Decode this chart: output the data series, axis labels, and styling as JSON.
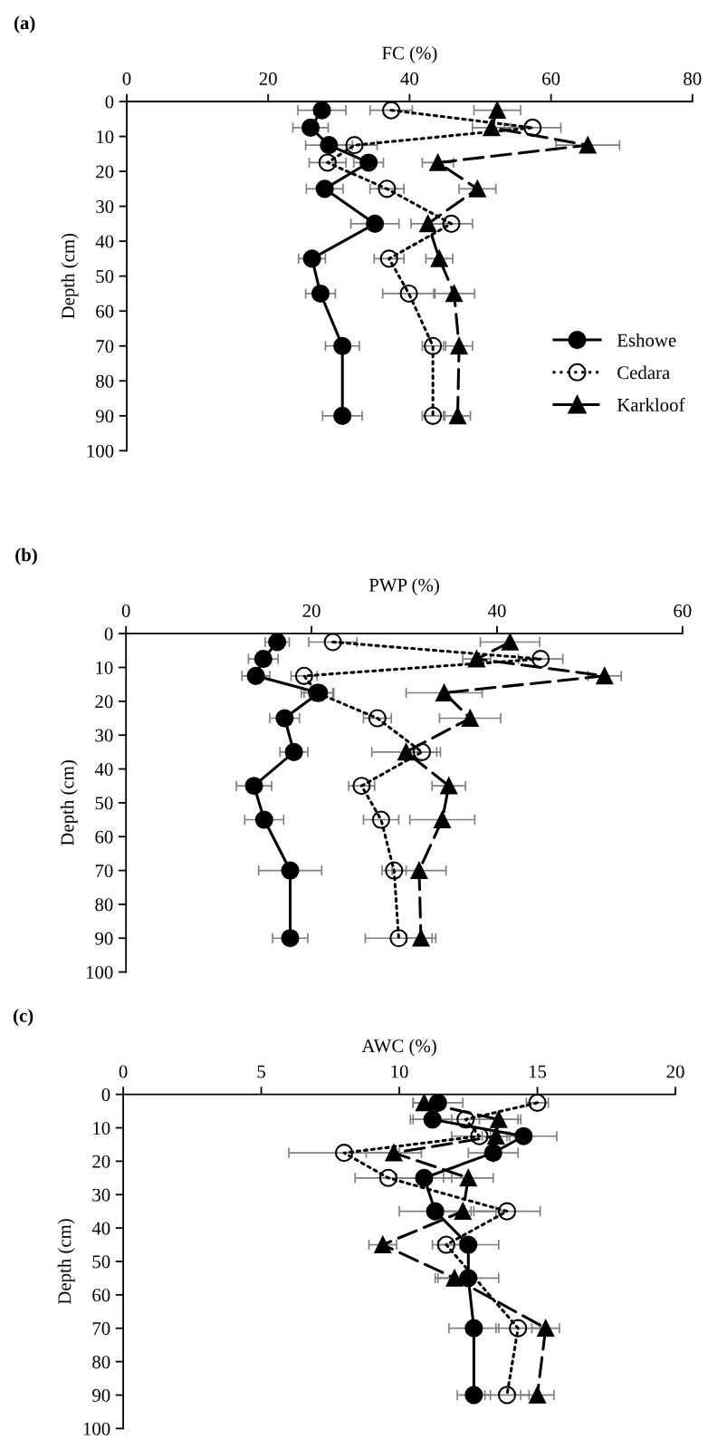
{
  "chart_data": [
    {
      "type": "line",
      "title": "(a)",
      "xlabel": "FC (%)",
      "ylabel": "Depth (cm)",
      "xlim": [
        0,
        80
      ],
      "xticks": [
        0,
        20,
        40,
        60,
        80
      ],
      "ylim": [
        100,
        0
      ],
      "yticks": [
        0,
        10,
        20,
        30,
        40,
        50,
        60,
        70,
        80,
        90,
        100
      ],
      "grid": false,
      "legend": "bottom right",
      "series": [
        {
          "name": "Eshowe",
          "color": "#000000",
          "marker": "circle",
          "line_style": "solid",
          "x": [
            27.6,
            26.0,
            28.6,
            34.2,
            28.0,
            35.1,
            26.2,
            27.4,
            30.5,
            30.5
          ],
          "values": [
            2.5,
            7.5,
            12.5,
            17.5,
            25,
            35,
            45,
            55,
            70,
            90
          ],
          "xerrors": [
            3.4,
            2.5,
            3.3,
            2.1,
            2.6,
            3.4,
            1.9,
            2.1,
            2.4,
            2.8
          ]
        },
        {
          "name": "Cedara",
          "color": "#000000",
          "marker": "circle",
          "line_style": "dotted",
          "x": [
            37.4,
            57.4,
            32.2,
            28.4,
            36.8,
            45.9,
            37.1,
            39.9,
            43.3,
            43.3
          ],
          "values": [
            2.5,
            7.5,
            12.5,
            17.5,
            25,
            35,
            45,
            55,
            70,
            90
          ],
          "xerrors": [
            3.0,
            4.0,
            3.2,
            2.6,
            2.4,
            3.0,
            2.1,
            3.7,
            1.5,
            1.5
          ]
        },
        {
          "name": "Karkloof",
          "color": "#000000",
          "marker": "triangle",
          "line_style": "dashed",
          "x": [
            52.4,
            51.6,
            65.2,
            44.0,
            49.6,
            42.6,
            44.2,
            46.3,
            47.0,
            46.8
          ],
          "values": [
            2.5,
            7.5,
            12.5,
            17.5,
            25,
            35,
            45,
            55,
            70,
            90
          ],
          "xerrors": [
            3.3,
            2.7,
            4.5,
            2.2,
            2.6,
            2.4,
            1.9,
            2.9,
            1.9,
            1.8
          ]
        }
      ]
    },
    {
      "type": "line",
      "title": "(b)",
      "xlabel": "PWP (%)",
      "ylabel": "Depth (cm)",
      "xlim": [
        0,
        60
      ],
      "xticks": [
        0,
        20,
        40,
        60
      ],
      "ylim": [
        100,
        0
      ],
      "yticks": [
        0,
        10,
        20,
        30,
        40,
        50,
        60,
        70,
        80,
        90,
        100
      ],
      "grid": false,
      "legend": false,
      "series": [
        {
          "color": "#000000",
          "marker": "circle",
          "line_style": "solid",
          "x": [
            16.3,
            14.8,
            14.0,
            20.8,
            17.1,
            18.1,
            13.8,
            14.9,
            17.7,
            17.7
          ],
          "values": [
            2.5,
            7.5,
            12.5,
            17.5,
            25,
            35,
            45,
            55,
            70,
            90
          ],
          "xerrors": [
            1.3,
            1.6,
            1.5,
            1.6,
            1.6,
            1.5,
            1.9,
            2.1,
            3.4,
            1.9
          ]
        },
        {
          "color": "#000000",
          "marker": "circle",
          "line_style": "dotted",
          "x": [
            22.3,
            44.7,
            19.2,
            20.6,
            27.1,
            31.9,
            25.4,
            27.5,
            28.9,
            29.4
          ],
          "values": [
            2.5,
            7.5,
            12.5,
            17.5,
            25,
            35,
            45,
            55,
            70,
            90
          ],
          "xerrors": [
            2.6,
            2.4,
            1.4,
            1.7,
            1.5,
            1.6,
            1.4,
            1.9,
            1.3,
            3.6
          ]
        },
        {
          "color": "#000000",
          "marker": "triangle",
          "line_style": "dashed",
          "x": [
            41.4,
            37.8,
            51.6,
            34.3,
            37.1,
            30.2,
            34.8,
            34.1,
            31.6,
            31.8
          ],
          "values": [
            2.5,
            7.5,
            12.5,
            17.5,
            25,
            35,
            45,
            55,
            70,
            90
          ],
          "xerrors": [
            3.2,
            1.5,
            1.8,
            4.1,
            3.3,
            3.7,
            1.8,
            3.5,
            2.9,
            1.6
          ]
        }
      ]
    },
    {
      "type": "line",
      "title": "(c)",
      "xlabel": "AWC (%)",
      "ylabel": "Depth (cm)",
      "xlim": [
        0,
        20
      ],
      "xticks": [
        0,
        5,
        10,
        15,
        20
      ],
      "ylim": [
        100,
        0
      ],
      "yticks": [
        0,
        10,
        20,
        30,
        40,
        50,
        60,
        70,
        80,
        90,
        100
      ],
      "grid": false,
      "legend": false,
      "series": [
        {
          "color": "#000000",
          "marker": "circle",
          "line_style": "solid",
          "x": [
            11.4,
            11.2,
            14.5,
            13.4,
            10.9,
            11.3,
            12.5,
            12.5,
            12.7,
            12.7
          ],
          "values": [
            2.5,
            7.5,
            12.5,
            17.5,
            25,
            35,
            45,
            55,
            70,
            90
          ],
          "xerrors": [
            0.9,
            0.7,
            1.2,
            0.9,
            1.0,
            1.3,
            1.1,
            1.1,
            0.9,
            0.6
          ]
        },
        {
          "color": "#000000",
          "marker": "circle",
          "line_style": "dotted",
          "x": [
            15.0,
            12.4,
            12.9,
            8.0,
            9.6,
            13.9,
            11.7,
            null,
            14.3,
            13.9
          ],
          "values": [
            2.5,
            7.5,
            12.5,
            17.5,
            25,
            35,
            45,
            null,
            70,
            90
          ],
          "xerrors": [
            0.4,
            2.0,
            1.0,
            2.0,
            1.2,
            1.2,
            0.5,
            null,
            0.8,
            0.8
          ]
        },
        {
          "color": "#000000",
          "marker": "triangle",
          "line_style": "dashed",
          "x": [
            10.9,
            13.6,
            13.5,
            9.8,
            12.5,
            12.3,
            9.4,
            12.0,
            15.3,
            15.0
          ],
          "values": [
            2.5,
            7.5,
            12.5,
            17.5,
            25,
            35,
            45,
            55,
            70,
            90
          ],
          "xerrors": [
            0.4,
            0.7,
            0.5,
            1.0,
            0.9,
            1.2,
            0.5,
            0.7,
            0.5,
            0.6
          ]
        }
      ]
    }
  ]
}
